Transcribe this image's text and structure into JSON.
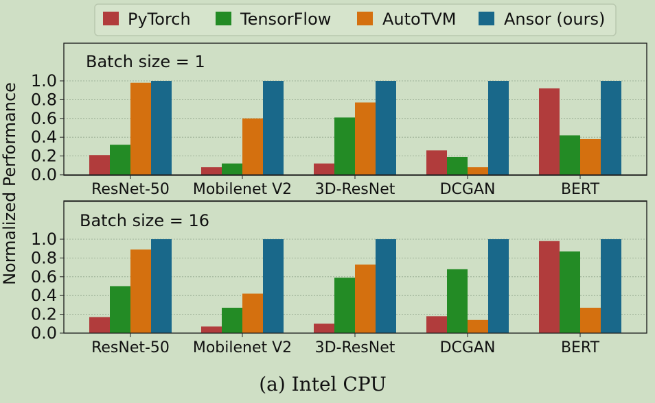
{
  "caption": "(a) Intel CPU",
  "colors": {
    "PyTorch": "#b13c3c",
    "TensorFlow": "#238b25",
    "AutoTVM": "#d4700f",
    "Ansor (ours)": "#19688a",
    "background": "#cfdfc5"
  },
  "chart_data": [
    {
      "type": "bar",
      "panel_label": "Batch size = 1",
      "ylabel": "Normalized Performance",
      "ylim": [
        0,
        1.0
      ],
      "yticks": [
        "0.0",
        "0.2",
        "0.4",
        "0.6",
        "0.8",
        "1.0"
      ],
      "grid": true,
      "legend_position": "top-center",
      "categories": [
        "ResNet-50",
        "Mobilenet V2",
        "3D-ResNet",
        "DCGAN",
        "BERT"
      ],
      "series": [
        {
          "name": "PyTorch",
          "values": [
            0.21,
            0.08,
            0.12,
            0.26,
            0.92
          ]
        },
        {
          "name": "TensorFlow",
          "values": [
            0.32,
            0.12,
            0.61,
            0.19,
            0.42
          ]
        },
        {
          "name": "AutoTVM",
          "values": [
            0.98,
            0.6,
            0.77,
            0.08,
            0.38
          ]
        },
        {
          "name": "Ansor (ours)",
          "values": [
            1.0,
            1.0,
            1.0,
            1.0,
            1.0
          ]
        }
      ]
    },
    {
      "type": "bar",
      "panel_label": "Batch size = 16",
      "ylabel": "Normalized Performance",
      "ylim": [
        0,
        1.0
      ],
      "yticks": [
        "0.0",
        "0.2",
        "0.4",
        "0.6",
        "0.8",
        "1.0"
      ],
      "grid": true,
      "categories": [
        "ResNet-50",
        "Mobilenet V2",
        "3D-ResNet",
        "DCGAN",
        "BERT"
      ],
      "series": [
        {
          "name": "PyTorch",
          "values": [
            0.17,
            0.07,
            0.1,
            0.18,
            0.98
          ]
        },
        {
          "name": "TensorFlow",
          "values": [
            0.5,
            0.27,
            0.59,
            0.68,
            0.87
          ]
        },
        {
          "name": "AutoTVM",
          "values": [
            0.89,
            0.42,
            0.73,
            0.14,
            0.27
          ]
        },
        {
          "name": "Ansor (ours)",
          "values": [
            1.0,
            1.0,
            1.0,
            1.0,
            1.0
          ]
        }
      ]
    }
  ]
}
